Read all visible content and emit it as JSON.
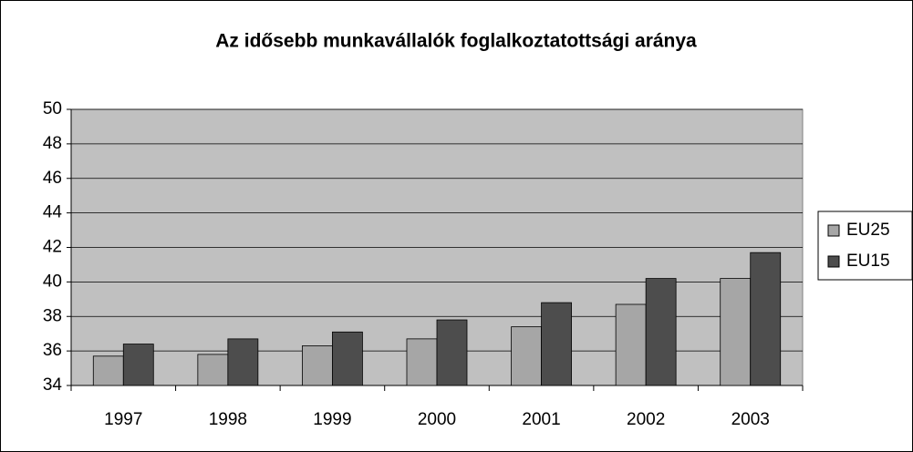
{
  "chart_data": {
    "type": "bar",
    "title": "Az idősebb munkavállalók foglalkoztatottsági aránya",
    "categories": [
      "1997",
      "1998",
      "1999",
      "2000",
      "2001",
      "2002",
      "2003"
    ],
    "series": [
      {
        "name": "EU25",
        "color": "#a6a6a6",
        "values": [
          35.7,
          35.8,
          36.3,
          36.7,
          37.4,
          38.7,
          40.2
        ]
      },
      {
        "name": "EU15",
        "color": "#4d4d4d",
        "values": [
          36.4,
          36.7,
          37.1,
          37.8,
          38.8,
          40.2,
          41.7
        ]
      }
    ],
    "ylim": [
      34,
      50
    ],
    "yticks": [
      34,
      36,
      38,
      40,
      42,
      44,
      46,
      48,
      50
    ],
    "grid": true,
    "legend": "right"
  }
}
